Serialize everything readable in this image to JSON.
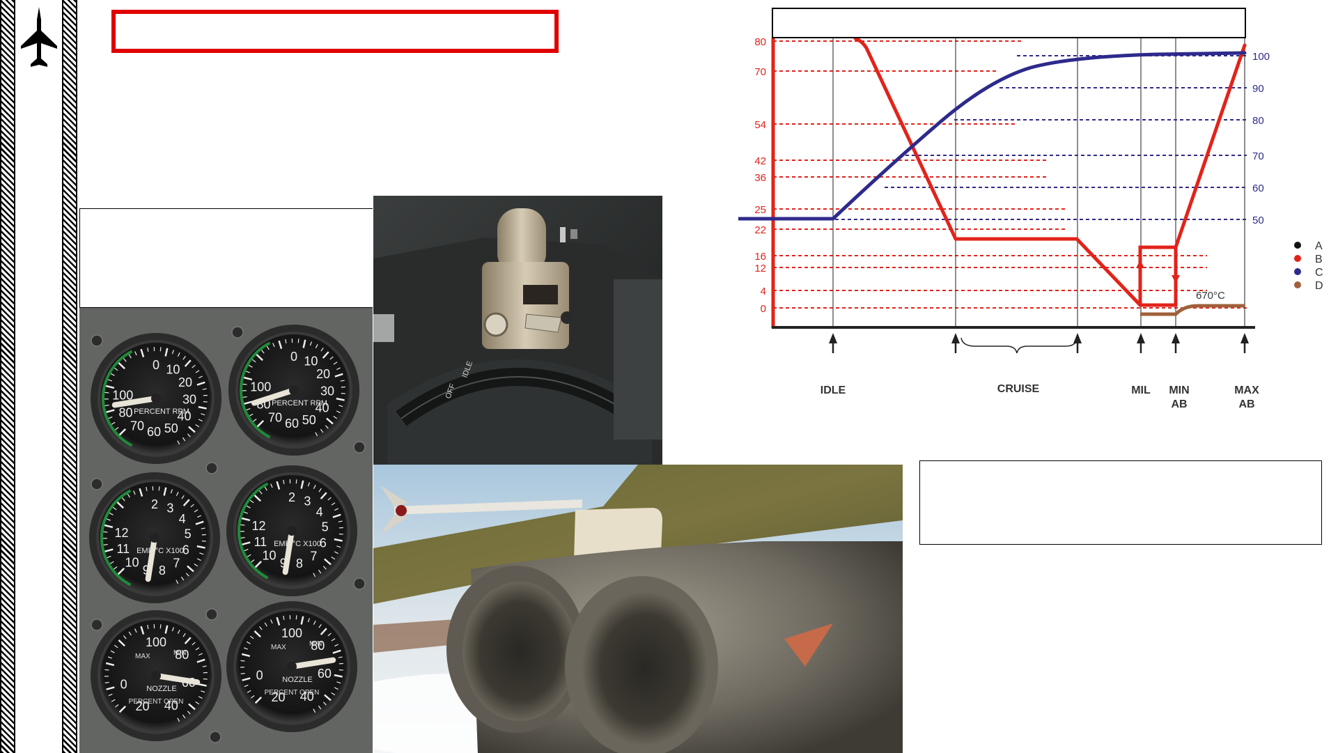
{
  "page": {
    "title": "",
    "chart_caption": "",
    "left_note": "",
    "right_note": ""
  },
  "gauges": {
    "rpm_label": "PERCENT RPM",
    "rpm_ticks": [
      "0",
      "10",
      "20",
      "30",
      "40",
      "50",
      "60",
      "70",
      "80",
      "100"
    ],
    "temp_label": "EMP °C X100",
    "temp_ticks": [
      "2",
      "3",
      "4",
      "5",
      "6",
      "7",
      "8",
      "9",
      "10",
      "11",
      "12"
    ],
    "nozzle_label": "NOZZLE",
    "nozzle_sub": "PERCENT OPEN",
    "nozzle_max": "MAX",
    "nozzle_min": "MIN",
    "nozzle_ticks": [
      "100",
      "80",
      "60",
      "40",
      "20",
      "0"
    ]
  },
  "throttle": {
    "labels": [
      "OFF",
      "IDLE"
    ]
  },
  "colors": {
    "red": "#e2231a",
    "blue": "#2e2a8c",
    "brown": "#a0603a",
    "frame_red": "#e00000"
  },
  "chart_data": {
    "type": "line",
    "x_categories": [
      "IDLE",
      "CRUISE",
      "MIL",
      "MIN AB",
      "MAX AB"
    ],
    "left_axis_ticks": [
      0,
      4,
      12,
      16,
      22,
      25,
      36,
      42,
      54,
      70,
      80
    ],
    "right_axis_ticks": [
      50,
      60,
      70,
      80,
      90,
      100
    ],
    "legend": [
      "A",
      "B",
      "C",
      "D"
    ],
    "legend_colors": [
      "#111111",
      "#e2231a",
      "#2e2a8c",
      "#a0603a"
    ],
    "annotation": "670°C",
    "series": [
      {
        "name": "B",
        "axis": "left",
        "x": [
          0,
          0.25,
          0.5,
          0.75,
          1.0,
          1.25,
          1.5,
          1.75,
          2.0,
          2.32,
          2.4,
          2.58,
          2.72,
          2.85,
          3.0
        ],
        "y": [
          80,
          76,
          60,
          43,
          26,
          20,
          20,
          20,
          20,
          20,
          1,
          1,
          17,
          17,
          80
        ]
      },
      {
        "name": "C",
        "axis": "right",
        "x": [
          0,
          0.25,
          0.5,
          1.0,
          1.5,
          2.0,
          2.5,
          3.0
        ],
        "y": [
          50,
          50,
          61,
          79,
          96,
          99.5,
          100,
          100
        ]
      },
      {
        "name": "D",
        "axis": "left",
        "x": [
          2.32,
          2.48,
          2.62,
          2.75,
          3.0
        ],
        "y": [
          -2,
          -2,
          -2,
          0,
          0
        ]
      }
    ]
  }
}
